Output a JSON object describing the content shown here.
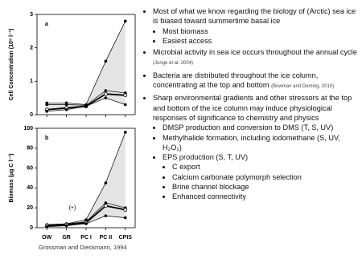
{
  "chart_data": [
    {
      "type": "line",
      "panel": "a",
      "ylabel": "Cell Concentration (10⁹ l⁻¹)",
      "categories": [
        "OW",
        "GR",
        "PC I",
        "PC II",
        "CPIS"
      ],
      "ylim": [
        0,
        3
      ],
      "yticks": [
        0,
        1,
        2,
        3
      ],
      "shade": true,
      "series": [
        {
          "color": "#000000",
          "values": [
            0.35,
            0.35,
            0.3,
            1.6,
            2.8
          ]
        },
        {
          "color": "#000000",
          "values": [
            0.3,
            0.3,
            0.28,
            0.72,
            0.65
          ]
        },
        {
          "color": "#000000",
          "values": [
            0.15,
            0.2,
            0.25,
            0.62,
            0.58
          ],
          "marker": true
        },
        {
          "color": "#000000",
          "values": [
            0.1,
            0.15,
            0.25,
            0.5,
            0.3
          ]
        }
      ]
    },
    {
      "type": "line",
      "panel": "b",
      "ylabel": "Biomass (μg C l⁻¹)",
      "annotation": "(+)",
      "categories": [
        "OW",
        "GR",
        "PC I",
        "PC II",
        "CPIS"
      ],
      "ylim": [
        0,
        100
      ],
      "yticks": [
        0,
        20,
        40,
        60,
        80,
        100
      ],
      "shade": true,
      "series": [
        {
          "color": "#000000",
          "values": [
            3,
            4,
            8,
            45,
            96
          ]
        },
        {
          "color": "#000000",
          "values": [
            3,
            4,
            6,
            25,
            20
          ]
        },
        {
          "color": "#000000",
          "values": [
            2,
            3,
            5,
            22,
            18
          ],
          "marker": true
        },
        {
          "color": "#000000",
          "values": [
            1,
            2,
            4,
            12,
            10
          ]
        }
      ]
    }
  ],
  "caption": "Grossman and Dieckmann, 1994",
  "bullets": [
    {
      "text": "Most of what we know regarding the biology of (Arctic) sea ice is biased toward summertime basal ice",
      "children": [
        {
          "text": "Most biomass"
        },
        {
          "text": "Easiest access"
        }
      ]
    },
    {
      "text": "Microbial activity in sea ice occurs throughout the annual cycle",
      "cite": "(Junge et al. 2004)"
    },
    {
      "text": "Bacteria are distributed throughout the ice column, concentrating at the top and bottom",
      "cite": "(Bowman and Deming, 2010)"
    },
    {
      "text": "Sharp environmental gradients and other stressors at the top and bottom of the ice column may induce physiological responses of significance to chemistry and physics",
      "children": [
        {
          "text": "DMSP production and conversion to DMS (T, S, UV)"
        },
        {
          "text": "Methylhalide formation, including iodomethane (S, UV, H₂O₂)"
        },
        {
          "text": "EPS production (S, T, UV)",
          "children": [
            {
              "text": "C export"
            },
            {
              "text": "Calcium carbonate polymorph selection"
            },
            {
              "text": "Brine channel blockage"
            },
            {
              "text": "Enhanced connectivity"
            }
          ]
        }
      ]
    }
  ]
}
